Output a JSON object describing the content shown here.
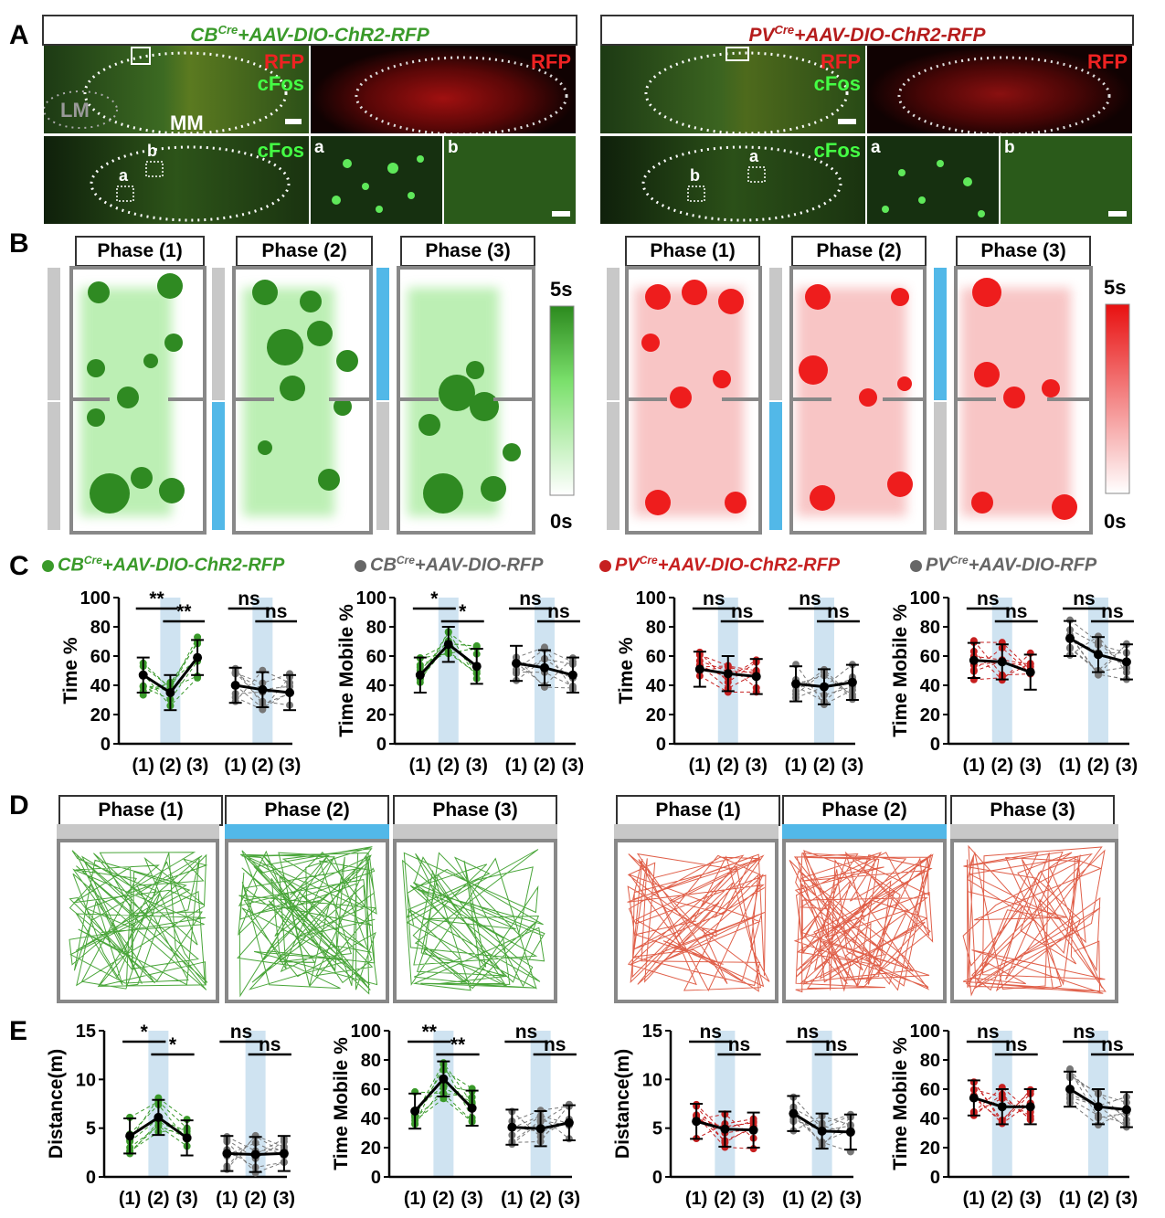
{
  "panels": {
    "A": "A",
    "B": "B",
    "C": "C",
    "D": "D",
    "E": "E"
  },
  "headers": {
    "left": {
      "base": "CB",
      "sup": "Cre",
      "rest": "+AAV-DIO-ChR2-RFP",
      "color": "#3a9a2a"
    },
    "right": {
      "base": "PV",
      "sup": "Cre",
      "rest": "+AAV-DIO-ChR2-RFP",
      "color": "#b51c1c"
    }
  },
  "micro": {
    "rfp": "RFP",
    "cfos": "cFos",
    "lm": "LM",
    "mm": "MM",
    "a": "a",
    "b": "b"
  },
  "phases": [
    "Phase (1)",
    "Phase (2)",
    "Phase (3)"
  ],
  "heat_scale": {
    "max": "5s",
    "min": "0s"
  },
  "legend": [
    {
      "base": "CB",
      "sup": "Cre",
      "rest": "+AAV-DIO-ChR2-RFP",
      "color": "#3a9a2a"
    },
    {
      "base": "CB",
      "sup": "Cre",
      "rest": "+AAV-DIO-RFP",
      "color": "#666666"
    },
    {
      "base": "PV",
      "sup": "Cre",
      "rest": "+AAV-DIO-ChR2-RFP",
      "color": "#c62020"
    },
    {
      "base": "PV",
      "sup": "Cre",
      "rest": "+AAV-DIO-RFP",
      "color": "#666666"
    }
  ],
  "colors": {
    "green": "#3a9a2a",
    "red": "#c62020",
    "gray": "#777777",
    "blue": "#52b8e8",
    "shade": "#cfe3f1"
  },
  "chart_data": [
    {
      "panel": "C",
      "type": "line",
      "ylabel": "Time %",
      "ylim": [
        0,
        100
      ],
      "yticks": [
        0,
        20,
        40,
        60,
        80,
        100
      ],
      "xticks": [
        "(1)",
        "(2)",
        "(3)",
        "(1)",
        "(2)",
        "(3)"
      ],
      "series": [
        {
          "values": [
            47,
            35,
            59
          ]
        },
        {
          "values": [
            40,
            37,
            35
          ]
        }
      ],
      "sig": [
        "**",
        "**",
        "ns",
        "ns"
      ]
    },
    {
      "panel": "C",
      "type": "line",
      "ylabel": "Time Mobile %",
      "ylim": [
        0,
        100
      ],
      "yticks": [
        0,
        20,
        40,
        60,
        80,
        100
      ],
      "xticks": [
        "(1)",
        "(2)",
        "(3)",
        "(1)",
        "(2)",
        "(3)"
      ],
      "series": [
        {
          "values": [
            47,
            68,
            53
          ]
        },
        {
          "values": [
            55,
            52,
            47
          ]
        }
      ],
      "sig": [
        "*",
        "*",
        "ns",
        "ns"
      ]
    },
    {
      "panel": "C",
      "type": "line",
      "ylabel": "Time %",
      "ylim": [
        0,
        100
      ],
      "yticks": [
        0,
        20,
        40,
        60,
        80,
        100
      ],
      "xticks": [
        "(1)",
        "(2)",
        "(3)",
        "(1)",
        "(2)",
        "(3)"
      ],
      "series": [
        {
          "values": [
            51,
            48,
            46
          ]
        },
        {
          "values": [
            41,
            39,
            42
          ]
        }
      ],
      "sig": [
        "ns",
        "ns",
        "ns",
        "ns"
      ]
    },
    {
      "panel": "C",
      "type": "line",
      "ylabel": "Time Mobile %",
      "ylim": [
        0,
        100
      ],
      "yticks": [
        0,
        20,
        40,
        60,
        80,
        100
      ],
      "xticks": [
        "(1)",
        "(2)",
        "(3)",
        "(1)",
        "(2)",
        "(3)"
      ],
      "series": [
        {
          "values": [
            57,
            56,
            49
          ]
        },
        {
          "values": [
            72,
            61,
            56
          ]
        }
      ],
      "sig": [
        "ns",
        "ns",
        "ns",
        "ns"
      ]
    },
    {
      "panel": "E",
      "type": "line",
      "ylabel": "Distance(m)",
      "ylim": [
        0,
        15
      ],
      "yticks": [
        0,
        5,
        10,
        15
      ],
      "xticks": [
        "(1)",
        "(2)",
        "(3)",
        "(1)",
        "(2)",
        "(3)"
      ],
      "series": [
        {
          "values": [
            4.2,
            6.1,
            4.0
          ]
        },
        {
          "values": [
            2.4,
            2.3,
            2.4
          ]
        }
      ],
      "sig": [
        "*",
        "*",
        "ns",
        "ns"
      ]
    },
    {
      "panel": "E",
      "type": "line",
      "ylabel": "Time Mobile %",
      "ylim": [
        0,
        100
      ],
      "yticks": [
        0,
        20,
        40,
        60,
        80,
        100
      ],
      "xticks": [
        "(1)",
        "(2)",
        "(3)",
        "(1)",
        "(2)",
        "(3)"
      ],
      "series": [
        {
          "values": [
            45,
            67,
            47
          ]
        },
        {
          "values": [
            34,
            33,
            37
          ]
        }
      ],
      "sig": [
        "**",
        "**",
        "ns",
        "ns"
      ]
    },
    {
      "panel": "E",
      "type": "line",
      "ylabel": "Distance(m)",
      "ylim": [
        0,
        15
      ],
      "yticks": [
        0,
        5,
        10,
        15
      ],
      "xticks": [
        "(1)",
        "(2)",
        "(3)",
        "(1)",
        "(2)",
        "(3)"
      ],
      "series": [
        {
          "values": [
            5.7,
            4.9,
            4.8
          ]
        },
        {
          "values": [
            6.5,
            4.7,
            4.6
          ]
        }
      ],
      "sig": [
        "ns",
        "ns",
        "ns",
        "ns"
      ]
    },
    {
      "panel": "E",
      "type": "line",
      "ylabel": "Time Mobile %",
      "ylim": [
        0,
        100
      ],
      "yticks": [
        0,
        20,
        40,
        60,
        80,
        100
      ],
      "xticks": [
        "(1)",
        "(2)",
        "(3)",
        "(1)",
        "(2)",
        "(3)"
      ],
      "series": [
        {
          "values": [
            54,
            48,
            48
          ]
        },
        {
          "values": [
            60,
            48,
            46
          ]
        }
      ],
      "sig": [
        "ns",
        "ns",
        "ns",
        "ns"
      ]
    }
  ]
}
